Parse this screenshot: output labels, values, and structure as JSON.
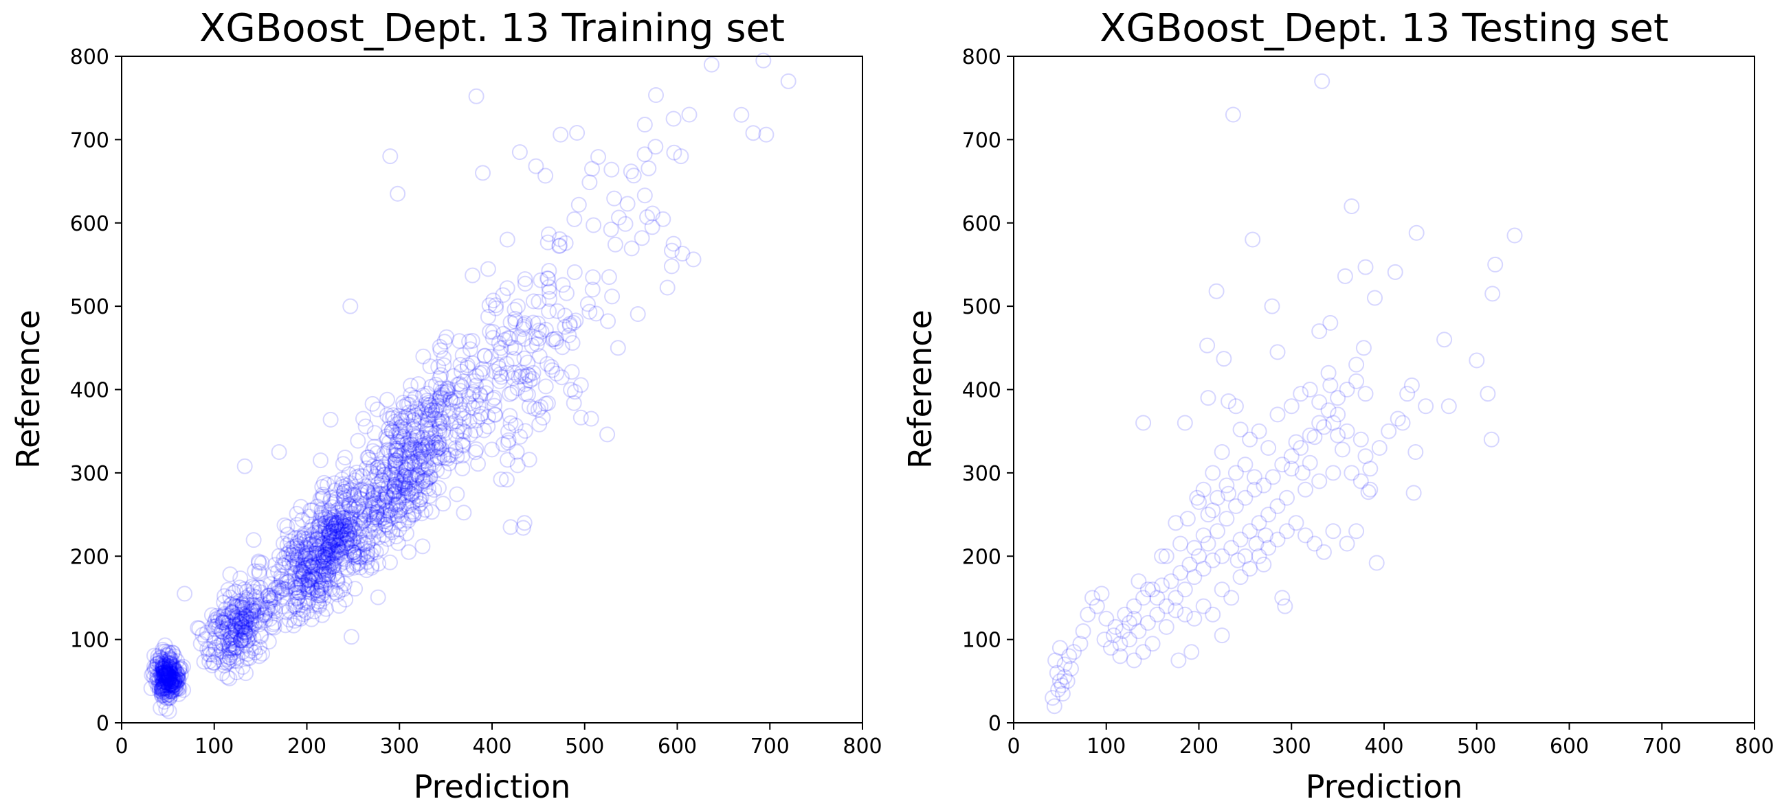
{
  "figure": {
    "colors": {
      "marker": "#0000ff",
      "axes": "#000000",
      "background": "#ffffff"
    },
    "marker_style": "hollow-circle"
  },
  "chart_data": [
    {
      "type": "scatter",
      "title": "XGBoost_Dept. 13 Training set",
      "xlabel": "Prediction",
      "ylabel": "Reference",
      "xlim": [
        0,
        800
      ],
      "ylim": [
        0,
        800
      ],
      "xticks": [
        "0",
        "100",
        "200",
        "300",
        "400",
        "500",
        "600",
        "700",
        "800"
      ],
      "yticks": [
        "0",
        "100",
        "200",
        "300",
        "400",
        "500",
        "600",
        "700",
        "800"
      ],
      "grid": false,
      "legend": "none",
      "series": [
        {
          "clusters": [
            {
              "cx": 50,
              "cy": 55,
              "sx": 6,
              "sy": 14,
              "r": 0,
              "n": 300
            },
            {
              "cx": 125,
              "cy": 115,
              "sx": 18,
              "sy": 25,
              "r": 0.4,
              "n": 250
            },
            {
              "cx": 215,
              "cy": 205,
              "sx": 28,
              "sy": 40,
              "r": 0.55,
              "n": 550
            },
            {
              "cx": 310,
              "cy": 310,
              "sx": 35,
              "sy": 55,
              "r": 0.6,
              "n": 500
            },
            {
              "cx": 420,
              "cy": 430,
              "sx": 45,
              "sy": 70,
              "r": 0.5,
              "n": 200
            },
            {
              "cx": 540,
              "cy": 580,
              "sx": 60,
              "sy": 80,
              "r": 0.4,
              "n": 40
            }
          ],
          "points": [
            [
              383,
              752
            ],
            [
              637,
              790
            ],
            [
              693,
              795
            ],
            [
              720,
              770
            ],
            [
              682,
              708
            ],
            [
              696,
              706
            ],
            [
              613,
              730
            ],
            [
              596,
              725
            ],
            [
              565,
              718
            ],
            [
              604,
              680
            ],
            [
              474,
              706
            ],
            [
              290,
              680
            ],
            [
              298,
              635
            ],
            [
              430,
              685
            ],
            [
              390,
              660
            ],
            [
              508,
              665
            ],
            [
              529,
              664
            ],
            [
              565,
              633
            ],
            [
              573,
              595
            ],
            [
              596,
              575
            ],
            [
              594,
              548
            ],
            [
              536,
              450
            ],
            [
              507,
              365
            ],
            [
              42,
              18
            ],
            [
              68,
              155
            ],
            [
              133,
              308
            ],
            [
              170,
              325
            ],
            [
              420,
              235
            ],
            [
              435,
              240
            ],
            [
              247,
              500
            ]
          ]
        }
      ]
    },
    {
      "type": "scatter",
      "title": "XGBoost_Dept. 13 Testing set",
      "xlabel": "Prediction",
      "ylabel": "Reference",
      "xlim": [
        0,
        800
      ],
      "ylim": [
        0,
        800
      ],
      "xticks": [
        "0",
        "100",
        "200",
        "300",
        "400",
        "500",
        "600",
        "700",
        "800"
      ],
      "yticks": [
        "0",
        "100",
        "200",
        "300",
        "400",
        "500",
        "600",
        "700",
        "800"
      ],
      "grid": false,
      "legend": "none",
      "series": [
        {
          "points": [
            [
              333,
              770
            ],
            [
              237,
              730
            ],
            [
              258,
              580
            ],
            [
              365,
              620
            ],
            [
              435,
              588
            ],
            [
              541,
              585
            ],
            [
              520,
              550
            ],
            [
              412,
              541
            ],
            [
              380,
              547
            ],
            [
              358,
              536
            ],
            [
              517,
              515
            ],
            [
              219,
              518
            ],
            [
              279,
              500
            ],
            [
              390,
              510
            ],
            [
              465,
              460
            ],
            [
              500,
              435
            ],
            [
              209,
              453
            ],
            [
              227,
              437
            ],
            [
              285,
              445
            ],
            [
              342,
              480
            ],
            [
              330,
              470
            ],
            [
              340,
              420
            ],
            [
              342,
              405
            ],
            [
              370,
              430
            ],
            [
              378,
              450
            ],
            [
              430,
              405
            ],
            [
              445,
              380
            ],
            [
              470,
              380
            ],
            [
              512,
              395
            ],
            [
              516,
              340
            ],
            [
              434,
              325
            ],
            [
              432,
              276
            ],
            [
              385,
              280
            ],
            [
              383,
              277
            ],
            [
              392,
              192
            ],
            [
              140,
              360
            ],
            [
              210,
              390
            ],
            [
              232,
              386
            ],
            [
              245,
              352
            ],
            [
              240,
              380
            ],
            [
              185,
              360
            ],
            [
              305,
              337
            ],
            [
              300,
              305
            ],
            [
              312,
              300
            ],
            [
              320,
              312
            ],
            [
              325,
              343
            ],
            [
              335,
              355
            ],
            [
              350,
              370
            ],
            [
              360,
              350
            ],
            [
              375,
              340
            ],
            [
              380,
              320
            ],
            [
              355,
              328
            ],
            [
              345,
              300
            ],
            [
              330,
              290
            ],
            [
              315,
              280
            ],
            [
              295,
              270
            ],
            [
              285,
              260
            ],
            [
              275,
              250
            ],
            [
              265,
              240
            ],
            [
              255,
              230
            ],
            [
              245,
              220
            ],
            [
              235,
              210
            ],
            [
              225,
              200
            ],
            [
              215,
              195
            ],
            [
              205,
              185
            ],
            [
              195,
              175
            ],
            [
              185,
              160
            ],
            [
              175,
              150
            ],
            [
              165,
              140
            ],
            [
              155,
              130
            ],
            [
              145,
              120
            ],
            [
              135,
              110
            ],
            [
              125,
              100
            ],
            [
              115,
              95
            ],
            [
              105,
              90
            ],
            [
              120,
              130
            ],
            [
              130,
              140
            ],
            [
              140,
              150
            ],
            [
              150,
              160
            ],
            [
              160,
              165
            ],
            [
              170,
              170
            ],
            [
              180,
              180
            ],
            [
              190,
              190
            ],
            [
              200,
              200
            ],
            [
              210,
              215
            ],
            [
              220,
              230
            ],
            [
              230,
              245
            ],
            [
              240,
              260
            ],
            [
              250,
              270
            ],
            [
              260,
              280
            ],
            [
              270,
              285
            ],
            [
              280,
              295
            ],
            [
              290,
              310
            ],
            [
              300,
              320
            ],
            [
              310,
              330
            ],
            [
              320,
              345
            ],
            [
              330,
              360
            ],
            [
              340,
              375
            ],
            [
              350,
              390
            ],
            [
              360,
              400
            ],
            [
              370,
              410
            ],
            [
              380,
              395
            ],
            [
              200,
              265
            ],
            [
              210,
              250
            ],
            [
              220,
              270
            ],
            [
              230,
              285
            ],
            [
              240,
              300
            ],
            [
              250,
              310
            ],
            [
              260,
              295
            ],
            [
              225,
              160
            ],
            [
              235,
              150
            ],
            [
              245,
              175
            ],
            [
              255,
              185
            ],
            [
              265,
              200
            ],
            [
              275,
              210
            ],
            [
              285,
              220
            ],
            [
              295,
              230
            ],
            [
              305,
              240
            ],
            [
              315,
              225
            ],
            [
              325,
              215
            ],
            [
              335,
              205
            ],
            [
              345,
              230
            ],
            [
              360,
              215
            ],
            [
              370,
              230
            ],
            [
              290,
              150
            ],
            [
              293,
              140
            ],
            [
              270,
              190
            ],
            [
              215,
              300
            ],
            [
              225,
              325
            ],
            [
              232,
              275
            ],
            [
              205,
              225
            ],
            [
              195,
              210
            ],
            [
              188,
              245
            ],
            [
              198,
              270
            ],
            [
              205,
              280
            ],
            [
              215,
              255
            ],
            [
              225,
              105
            ],
            [
              192,
              85
            ],
            [
              178,
              75
            ],
            [
              165,
              115
            ],
            [
              150,
              95
            ],
            [
              140,
              85
            ],
            [
              130,
              75
            ],
            [
              115,
              80
            ],
            [
              110,
              115
            ],
            [
              100,
              125
            ],
            [
              90,
              140
            ],
            [
              85,
              150
            ],
            [
              95,
              155
            ],
            [
              80,
              130
            ],
            [
              75,
              110
            ],
            [
              72,
              95
            ],
            [
              65,
              85
            ],
            [
              60,
              80
            ],
            [
              55,
              70
            ],
            [
              50,
              90
            ],
            [
              45,
              75
            ],
            [
              42,
              30
            ],
            [
              44,
              20
            ],
            [
              48,
              40
            ],
            [
              52,
              45
            ],
            [
              55,
              55
            ],
            [
              50,
              50
            ],
            [
              47,
              60
            ],
            [
              53,
              35
            ],
            [
              58,
              50
            ],
            [
              62,
              65
            ],
            [
              135,
              170
            ],
            [
              145,
              160
            ],
            [
              160,
              200
            ],
            [
              175,
              240
            ],
            [
              180,
              215
            ],
            [
              165,
              200
            ],
            [
              255,
              340
            ],
            [
              265,
              350
            ],
            [
              275,
              330
            ],
            [
              285,
              370
            ],
            [
              300,
              380
            ],
            [
              310,
              395
            ],
            [
              320,
              400
            ],
            [
              330,
              385
            ],
            [
              345,
              360
            ],
            [
              350,
              345
            ],
            [
              365,
              300
            ],
            [
              375,
              290
            ],
            [
              385,
              305
            ],
            [
              395,
              330
            ],
            [
              405,
              350
            ],
            [
              415,
              365
            ],
            [
              420,
              360
            ],
            [
              425,
              395
            ],
            [
              250,
              200
            ],
            [
              242,
              195
            ],
            [
              262,
              215
            ],
            [
              272,
              225
            ],
            [
              205,
              140
            ],
            [
              215,
              130
            ],
            [
              195,
              125
            ],
            [
              185,
              130
            ],
            [
              175,
              135
            ],
            [
              155,
              150
            ],
            [
              125,
              120
            ],
            [
              118,
              110
            ],
            [
              108,
              105
            ],
            [
              98,
              100
            ],
            [
              130,
              125
            ]
          ]
        }
      ]
    }
  ]
}
